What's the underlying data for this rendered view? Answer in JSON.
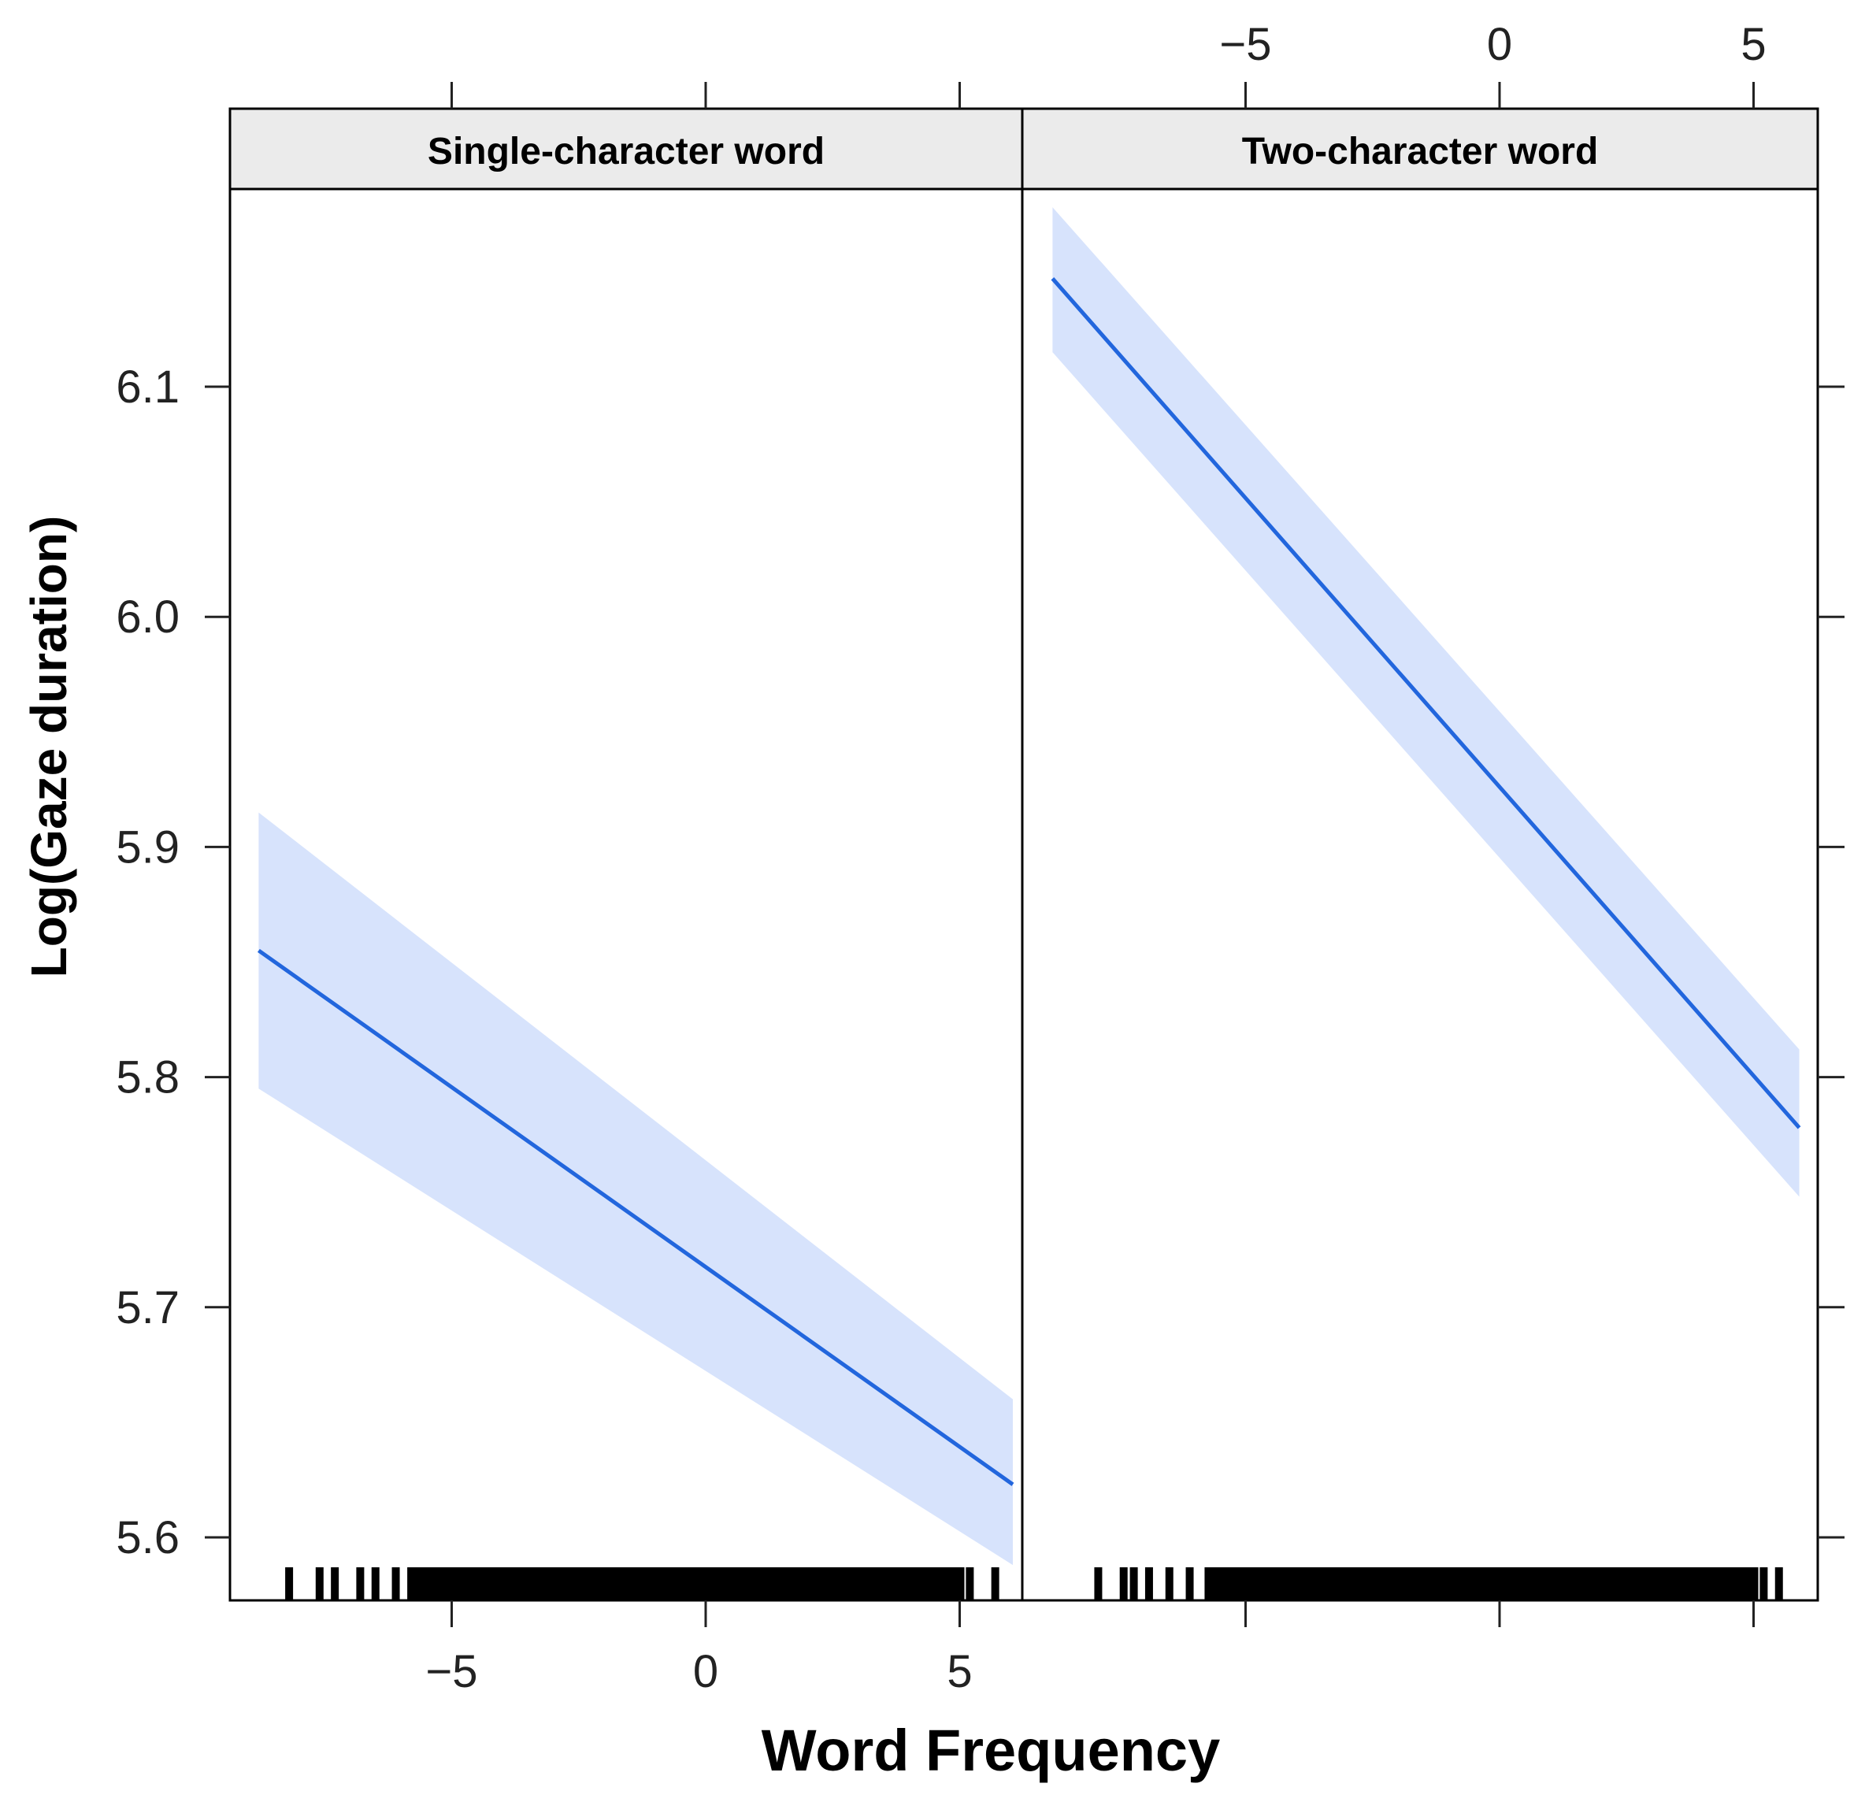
{
  "chart_data": {
    "type": "line",
    "xlabel": "Word Frequency",
    "ylabel": "Log(Gaze duration)",
    "ylim": [
      5.575,
      6.195
    ],
    "xlim": [
      -8.8,
      6.5
    ],
    "x_ticks": [
      -5,
      0,
      5
    ],
    "x_tick_labels": [
      "−5",
      "0",
      "5"
    ],
    "y_ticks": [
      5.6,
      5.7,
      5.8,
      5.9,
      6.0,
      6.1
    ],
    "y_tick_labels": [
      "5.6",
      "5.7",
      "5.8",
      "5.9",
      "6.0",
      "6.1"
    ],
    "grid": false,
    "line_color": "#2266DD",
    "band_color": "#D7E3FC",
    "rug_color": "#000000",
    "strip_color": "#EBEBEB",
    "panels": [
      {
        "name": "Single-character word",
        "x": [
          -8.8,
          6.1
        ],
        "fit": [
          5.855,
          5.623
        ],
        "lower": [
          5.795,
          5.588
        ],
        "upper": [
          5.915,
          5.66
        ],
        "rug_x": [
          -8.2,
          -7.6,
          -7.3,
          -6.8,
          -6.5,
          -6.1,
          -5.7,
          -5.3,
          -4.9,
          -4.5,
          -4.0,
          -3.6,
          -3.2,
          -2.8,
          -2.4,
          -2.0,
          -1.6,
          -1.2,
          -0.8,
          -0.4,
          0.0,
          0.4,
          0.8,
          1.2,
          1.6,
          2.0,
          2.4,
          2.8,
          3.2,
          3.6,
          4.0,
          4.4,
          4.8,
          5.2,
          5.7
        ]
      },
      {
        "name": "Two-character word",
        "x": [
          -8.8,
          5.9
        ],
        "fit": [
          6.147,
          5.778
        ],
        "lower": [
          6.115,
          5.748
        ],
        "upper": [
          6.178,
          5.812
        ],
        "rug_x": [
          -7.9,
          -7.4,
          -7.2,
          -6.9,
          -6.5,
          -6.1,
          -5.7,
          -5.3,
          -4.9,
          -4.5,
          -4.1,
          -3.7,
          -3.3,
          -2.9,
          -2.5,
          -2.1,
          -1.7,
          -1.3,
          -0.9,
          -0.5,
          -0.1,
          0.3,
          0.7,
          1.1,
          1.5,
          1.9,
          2.3,
          2.7,
          3.1,
          3.5,
          3.9,
          4.3,
          4.7,
          5.2,
          5.5
        ]
      }
    ]
  }
}
